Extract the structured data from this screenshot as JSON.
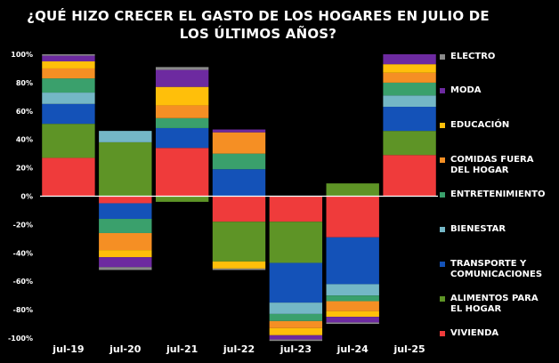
{
  "title_line1": "¿QUÉ HIZO CRECER EL GASTO DE LOS HOGARES EN JULIO DE",
  "title_line2": "LOS ÚLTIMOS AÑOS?",
  "chart_data": {
    "type": "bar",
    "stacked": true,
    "categories": [
      "jul-19",
      "jul-20",
      "jul-21",
      "jul-22",
      "jul-23",
      "jul-24",
      "jul-25"
    ],
    "ylim": [
      -100,
      100
    ],
    "yticks": [
      -100,
      -80,
      -60,
      -40,
      -20,
      0,
      20,
      40,
      60,
      80,
      100
    ],
    "ytick_labels": [
      "-100%",
      "-80%",
      "-60%",
      "-40%",
      "-20%",
      "0%",
      "20%",
      "40%",
      "60%",
      "80%",
      "100%"
    ],
    "grid": false,
    "legend_position": "right",
    "series": [
      {
        "name": "VIVIENDA",
        "color": "#ef3b3b",
        "values": [
          27,
          -5,
          34,
          -18,
          -18,
          -29,
          29
        ]
      },
      {
        "name": "ALIMENTOS PARA\nEL HOGAR",
        "color": "#5e9426",
        "values": [
          24,
          38,
          -4,
          -28,
          -29,
          9,
          17
        ]
      },
      {
        "name": "TRANSPORTE Y\nCOMUNICACIONES",
        "color": "#1452b8",
        "values": [
          14,
          -11,
          14,
          19,
          -28,
          -33,
          17
        ]
      },
      {
        "name": "BIENESTAR",
        "color": "#74b7c6",
        "values": [
          8,
          8,
          0,
          0,
          -8,
          -8,
          8
        ]
      },
      {
        "name": "ENTRETENIMIENTO",
        "color": "#3aa06c",
        "values": [
          10,
          -10,
          7,
          11,
          -5,
          -4,
          9
        ]
      },
      {
        "name": "COMIDAS FUERA\nDEL HOGAR",
        "color": "#f58f24",
        "values": [
          7,
          -12,
          9,
          15,
          -5,
          -7,
          7
        ]
      },
      {
        "name": "EDUCACIÓN",
        "color": "#ffbf0a",
        "values": [
          5,
          -5,
          13,
          -5,
          -5,
          -4,
          6
        ]
      },
      {
        "name": "MODA",
        "color": "#6d2aa0",
        "values": [
          4,
          -7,
          12,
          2,
          -3,
          -4,
          7
        ]
      },
      {
        "name": "ELECTRO",
        "color": "#8a8a8a",
        "values": [
          1,
          -2,
          2,
          -1,
          -1,
          -1,
          0
        ]
      }
    ]
  }
}
